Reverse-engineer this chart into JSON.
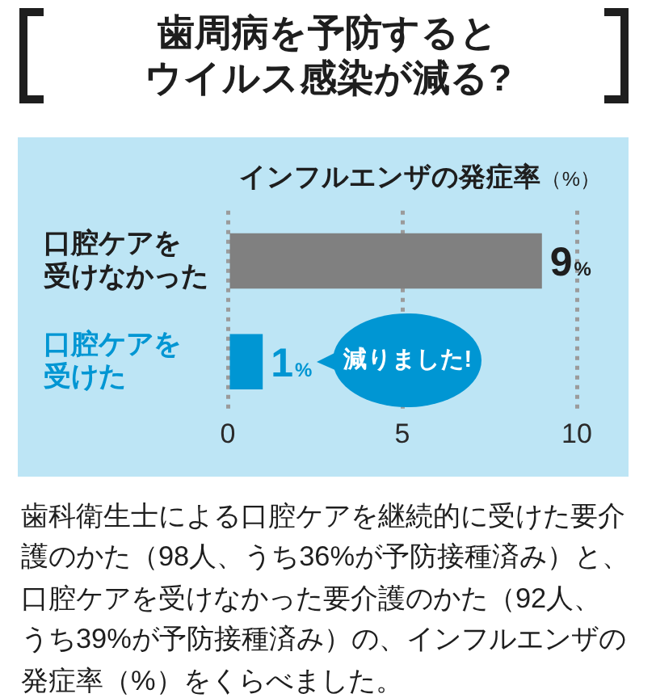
{
  "chart_data": {
    "type": "bar",
    "orientation": "horizontal",
    "title": "歯周病を予防するとウイルス感染が減る?",
    "xlabel": "インフルエンザの発症率（%）",
    "categories": [
      "口腔ケアを受けなかった",
      "口腔ケアを受けた"
    ],
    "values": [
      9,
      1
    ],
    "colors": [
      "#808080",
      "#0096d3"
    ],
    "value_labels": [
      "9%",
      "1%"
    ],
    "xlim": [
      0,
      10
    ],
    "xticks": [
      0,
      5,
      10
    ],
    "grid": "x",
    "annotations": [
      "減りました!",
      "歯科衛生士による口腔ケアを継続的に受けた要介護のかた（98人、うち36%が予防接種済み）と、口腔ケアを受けなかった要介護のかた（92人、うち39%が予防接種済み）の、インフルエンザの発症率（%）をくらべました。"
    ]
  }
}
